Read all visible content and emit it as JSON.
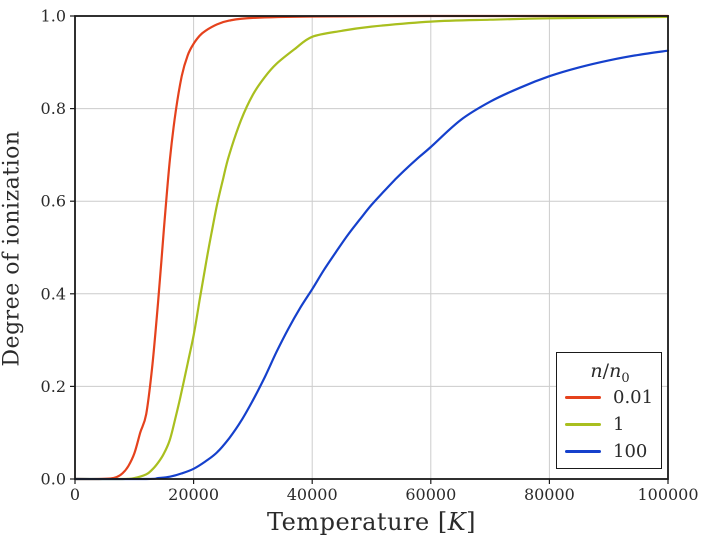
{
  "figure": {
    "background": "#ffffff"
  },
  "axis": {
    "x_label_pre": "Temperature [",
    "x_label_var": "K",
    "x_label_post": "]",
    "y_label": "Degree of ionization"
  },
  "legend": {
    "title_parts": [
      "n",
      "/",
      "n",
      "0"
    ],
    "entries": [
      {
        "label": "0.01",
        "color": "#e5421d"
      },
      {
        "label": "1",
        "color": "#a9bf1f"
      },
      {
        "label": "100",
        "color": "#1540cc"
      }
    ]
  },
  "colors": {
    "grid": "#cccccc",
    "spine": "#1a1a1a",
    "tick_text": "#2b2b2b"
  },
  "chart_data": {
    "type": "line",
    "title": "",
    "xlabel": "Temperature [K]",
    "ylabel": "Degree of ionization",
    "xlim": [
      0,
      100000
    ],
    "ylim": [
      0.0,
      1.0
    ],
    "grid": true,
    "legend_position": "lower right",
    "legend_title": "n/n0",
    "x_ticks": [
      0,
      20000,
      40000,
      60000,
      80000,
      100000
    ],
    "x_tick_labels": [
      "0",
      "20000",
      "40000",
      "60000",
      "80000",
      "100000"
    ],
    "y_ticks": [
      0.0,
      0.2,
      0.4,
      0.6,
      0.8,
      1.0
    ],
    "y_tick_labels": [
      "0.0",
      "0.2",
      "0.4",
      "0.6",
      "0.8",
      "1.0"
    ],
    "series": [
      {
        "name": "0.01",
        "color": "#e5421d",
        "x": [
          0,
          4000,
          6000,
          7000,
          8000,
          9000,
          10000,
          11000,
          12000,
          13000,
          14000,
          15000,
          16000,
          17000,
          18000,
          19000,
          20000,
          21000,
          22000,
          24000,
          26000,
          30000,
          40000,
          60000,
          80000,
          100000
        ],
        "y": [
          0,
          0.0,
          0.001,
          0.004,
          0.012,
          0.028,
          0.055,
          0.1,
          0.14,
          0.24,
          0.38,
          0.54,
          0.69,
          0.795,
          0.87,
          0.915,
          0.94,
          0.957,
          0.968,
          0.982,
          0.99,
          0.996,
          0.999,
          1.0,
          1.0,
          1.0
        ]
      },
      {
        "name": "1",
        "color": "#a9bf1f",
        "x": [
          0,
          8000,
          10000,
          12000,
          13000,
          14000,
          15000,
          16000,
          17000,
          18000,
          19000,
          20000,
          21000,
          22000,
          23000,
          24000,
          25000,
          26000,
          28000,
          30000,
          32000,
          34000,
          37000,
          40000,
          45000,
          50000,
          60000,
          70000,
          80000,
          100000
        ],
        "y": [
          0,
          0.0,
          0.002,
          0.01,
          0.02,
          0.035,
          0.055,
          0.085,
          0.135,
          0.19,
          0.25,
          0.31,
          0.385,
          0.46,
          0.53,
          0.595,
          0.65,
          0.7,
          0.775,
          0.83,
          0.868,
          0.897,
          0.928,
          0.955,
          0.968,
          0.977,
          0.988,
          0.992,
          0.995,
          0.998
        ]
      },
      {
        "name": "100",
        "color": "#1540cc",
        "x": [
          0,
          12000,
          14000,
          16000,
          18000,
          20000,
          22000,
          24000,
          26000,
          28000,
          30000,
          32000,
          34000,
          36000,
          38000,
          40000,
          42000,
          44000,
          46000,
          48000,
          50000,
          52000,
          54000,
          56000,
          58000,
          60000,
          65000,
          70000,
          75000,
          80000,
          85000,
          90000,
          95000,
          100000
        ],
        "y": [
          0,
          0.0,
          0.002,
          0.005,
          0.012,
          0.022,
          0.038,
          0.058,
          0.088,
          0.125,
          0.17,
          0.22,
          0.275,
          0.325,
          0.37,
          0.41,
          0.452,
          0.49,
          0.527,
          0.56,
          0.592,
          0.62,
          0.647,
          0.672,
          0.695,
          0.717,
          0.775,
          0.815,
          0.845,
          0.87,
          0.889,
          0.904,
          0.916,
          0.925
        ]
      }
    ]
  }
}
